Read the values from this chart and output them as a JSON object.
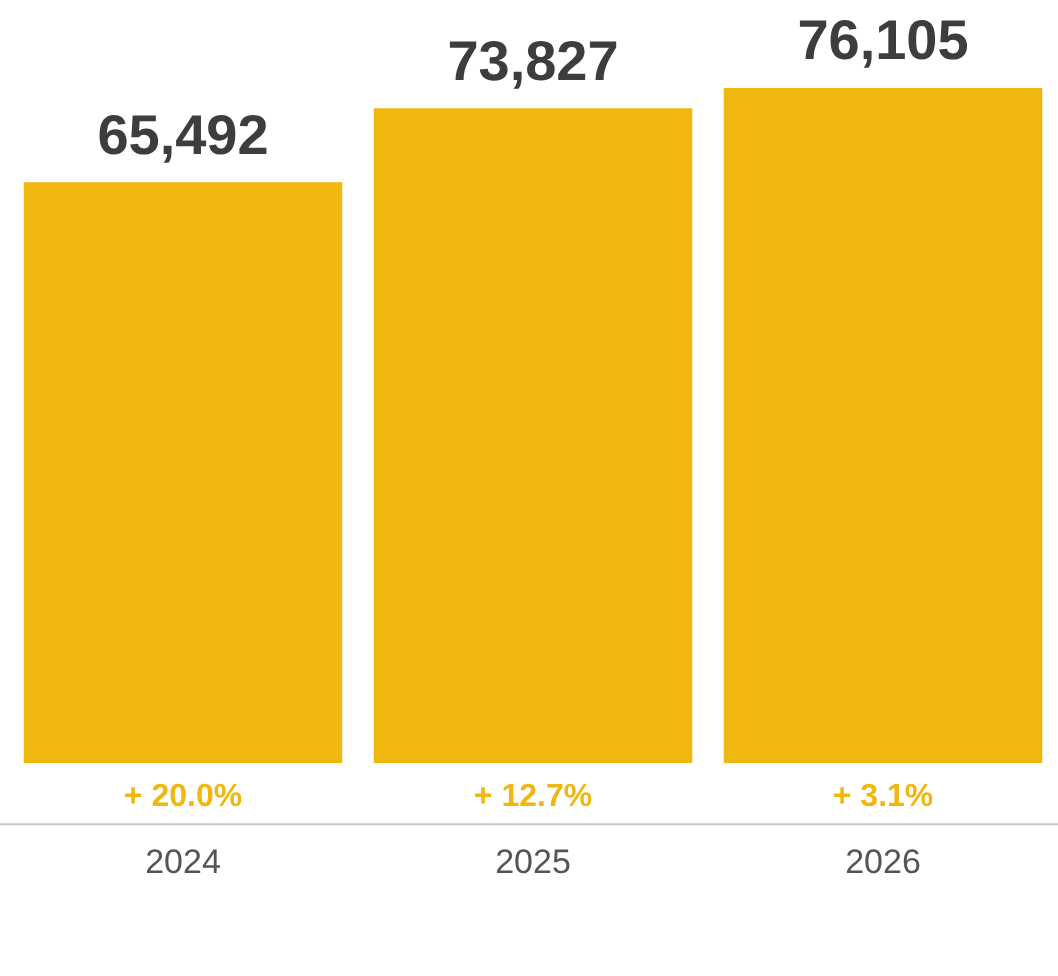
{
  "chart_data": {
    "type": "bar",
    "categories": [
      "2024",
      "2025",
      "2026"
    ],
    "values": [
      65492,
      73827,
      76105
    ],
    "value_labels": [
      "65,492",
      "73,827",
      "76,105"
    ],
    "color": "#f0b70f",
    "grid": false,
    "legend": false,
    "annotations": [
      "+ 20.0%",
      "+ 12.7%",
      "+ 3.1%"
    ]
  }
}
